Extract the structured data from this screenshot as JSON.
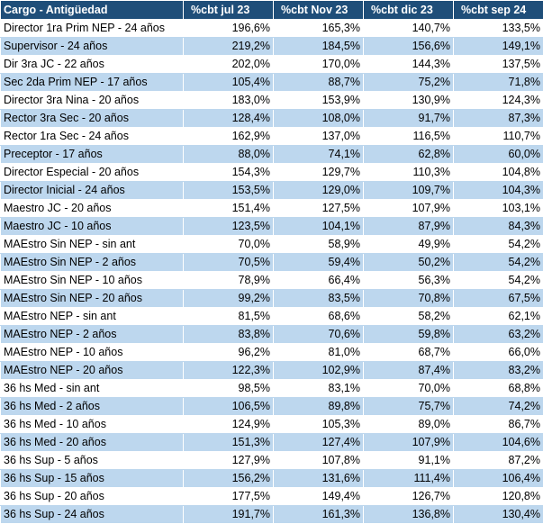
{
  "table": {
    "headers": [
      "Cargo - Antigüedad",
      "%cbt jul 23",
      "%cbt Nov 23",
      "%cbt dic 23",
      "%cbt sep 24"
    ],
    "rows": [
      [
        "Director 1ra Prim NEP - 24 años",
        "196,6%",
        "165,3%",
        "140,7%",
        "133,5%"
      ],
      [
        "Supervisor - 24 años",
        "219,2%",
        "184,5%",
        "156,6%",
        "149,1%"
      ],
      [
        "Dir 3ra JC - 22 años",
        "202,0%",
        "170,0%",
        "144,3%",
        "137,5%"
      ],
      [
        "Sec 2da Prim NEP - 17 años",
        "105,4%",
        "88,7%",
        "75,2%",
        "71,8%"
      ],
      [
        "Director 3ra Nina - 20 años",
        "183,0%",
        "153,9%",
        "130,9%",
        "124,3%"
      ],
      [
        "Rector 3ra Sec - 20 años",
        "128,4%",
        "108,0%",
        "91,7%",
        "87,3%"
      ],
      [
        "Rector 1ra Sec - 24 años",
        "162,9%",
        "137,0%",
        "116,5%",
        "110,7%"
      ],
      [
        "Preceptor - 17 años",
        "88,0%",
        "74,1%",
        "62,8%",
        "60,0%"
      ],
      [
        "Director Especial - 20 años",
        "154,3%",
        "129,7%",
        "110,3%",
        "104,8%"
      ],
      [
        "Director Inicial - 24 años",
        "153,5%",
        "129,0%",
        "109,7%",
        "104,3%"
      ],
      [
        "Maestro JC - 20 años",
        "151,4%",
        "127,5%",
        "107,9%",
        "103,1%"
      ],
      [
        "Maestro JC - 10 años",
        "123,5%",
        "104,1%",
        "87,9%",
        "84,3%"
      ],
      [
        "MAEstro Sin NEP - sin ant",
        "70,0%",
        "58,9%",
        "49,9%",
        "54,2%"
      ],
      [
        "MAEstro Sin NEP - 2 años",
        "70,5%",
        "59,4%",
        "50,2%",
        "54,2%"
      ],
      [
        "MAEstro Sin NEP - 10 años",
        "78,9%",
        "66,4%",
        "56,3%",
        "54,2%"
      ],
      [
        "MAEstro Sin NEP - 20 años",
        "99,2%",
        "83,5%",
        "70,8%",
        "67,5%"
      ],
      [
        "MAEstro NEP - sin ant",
        "81,5%",
        "68,6%",
        "58,2%",
        "62,1%"
      ],
      [
        "MAEstro NEP - 2 años",
        "83,8%",
        "70,6%",
        "59,8%",
        "63,2%"
      ],
      [
        "MAEstro NEP - 10 años",
        "96,2%",
        "81,0%",
        "68,7%",
        "66,0%"
      ],
      [
        "MAEstro NEP - 20 años",
        "122,3%",
        "102,9%",
        "87,4%",
        "83,2%"
      ],
      [
        "36 hs Med - sin ant",
        "98,5%",
        "83,1%",
        "70,0%",
        "68,8%"
      ],
      [
        "36 hs Med - 2 años",
        "106,5%",
        "89,8%",
        "75,7%",
        "74,2%"
      ],
      [
        "36 hs Med - 10 años",
        "124,9%",
        "105,3%",
        "89,0%",
        "86,7%"
      ],
      [
        "36 hs Med - 20 años",
        "151,3%",
        "127,4%",
        "107,9%",
        "104,6%"
      ],
      [
        "36 hs Sup - 5 años",
        "127,9%",
        "107,8%",
        "91,1%",
        "87,2%"
      ],
      [
        "36 hs Sup - 15 años",
        "156,2%",
        "131,6%",
        "111,4%",
        "106,4%"
      ],
      [
        "36 hs Sup - 20 años",
        "177,5%",
        "149,4%",
        "126,7%",
        "120,8%"
      ],
      [
        "36 hs Sup - 24 años",
        "191,7%",
        "161,3%",
        "136,8%",
        "130,4%"
      ]
    ]
  },
  "colors": {
    "header_bg": "#1f4e79",
    "header_text": "#ffffff",
    "band_row": "#bdd7ee"
  }
}
